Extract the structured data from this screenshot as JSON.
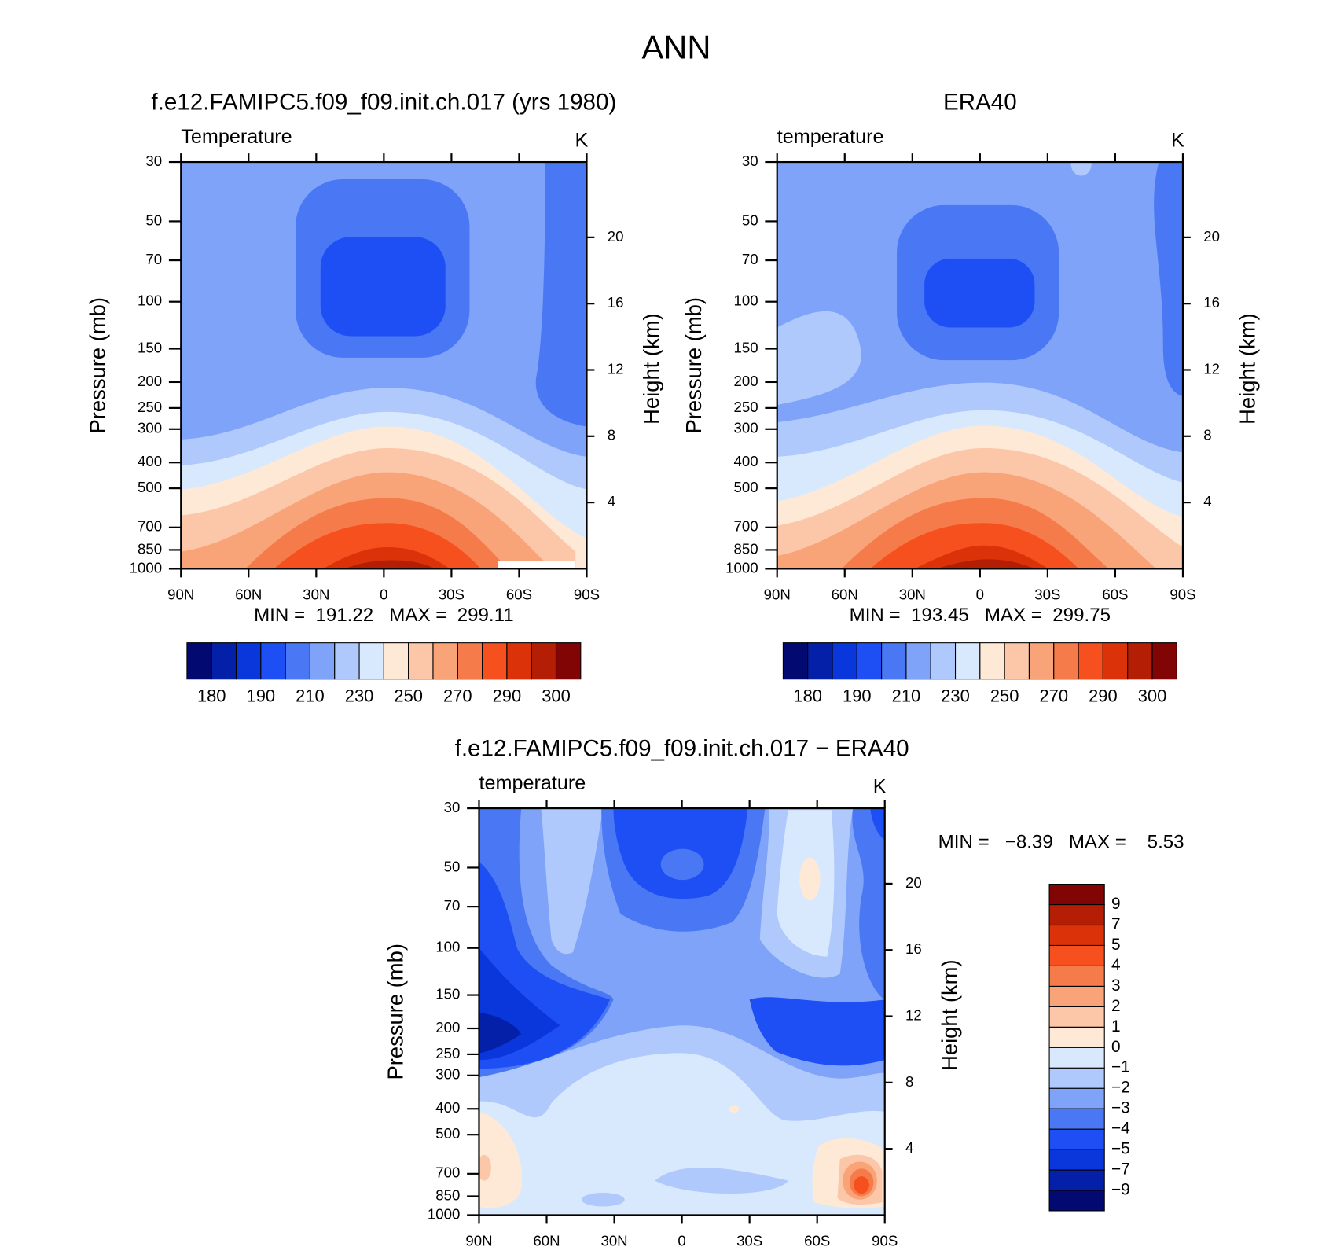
{
  "title": "ANN",
  "chart_data": [
    {
      "type": "contour",
      "title": "f.e12.FAMIPC5.f09_f09.init.ch.017 (yrs 1980)",
      "variable": "Temperature",
      "units": "K",
      "ylabel": "Pressure (mb)",
      "y2label": "Height (km)",
      "stats": "MIN =  191.22   MAX =  299.11",
      "xlim": [
        90,
        -90
      ],
      "xticks": [
        {
          "value": 90,
          "label": "90N"
        },
        {
          "value": 60,
          "label": "60N"
        },
        {
          "value": 30,
          "label": "30N"
        },
        0,
        {
          "value": -30,
          "label": "30S"
        },
        {
          "value": -60,
          "label": "60S"
        },
        {
          "value": -90,
          "label": "90S"
        }
      ],
      "ylim": [
        30,
        1000
      ],
      "log_y": true,
      "y_inverted": true,
      "yticks": [
        30,
        50,
        70,
        100,
        150,
        200,
        250,
        300,
        400,
        500,
        700,
        850,
        1000
      ],
      "y2ticks": [
        20,
        16,
        12,
        8,
        4
      ],
      "colorbar": {
        "orientation": "horizontal",
        "colors": [
          "#020a72",
          "#0520a8",
          "#0a37dc",
          "#1e4ff5",
          "#4a78f5",
          "#7ea3f8",
          "#b0c9fc",
          "#d9e9fd",
          "#fde9d6",
          "#fcc6a8",
          "#f8a478",
          "#f57c4a",
          "#f5501e",
          "#dc320a",
          "#b41e05",
          "#820505"
        ],
        "labels": [
          180,
          190,
          210,
          230,
          250,
          270,
          290,
          300
        ]
      }
    },
    {
      "type": "contour",
      "title": "ERA40",
      "variable": "temperature",
      "units": "K",
      "ylabel": "Pressure (mb)",
      "y2label": "Height (km)",
      "stats": "MIN =  193.45   MAX =  299.75",
      "xlim": [
        90,
        -90
      ],
      "xticks": [
        {
          "value": 90,
          "label": "90N"
        },
        {
          "value": 60,
          "label": "60N"
        },
        {
          "value": 30,
          "label": "30N"
        },
        0,
        {
          "value": -30,
          "label": "30S"
        },
        {
          "value": -60,
          "label": "60S"
        },
        {
          "value": -90,
          "label": "90S"
        }
      ],
      "ylim": [
        30,
        1000
      ],
      "log_y": true,
      "y_inverted": true,
      "yticks": [
        30,
        50,
        70,
        100,
        150,
        200,
        250,
        300,
        400,
        500,
        700,
        850,
        1000
      ],
      "y2ticks": [
        20,
        16,
        12,
        8,
        4
      ],
      "colorbar": {
        "orientation": "horizontal",
        "colors": [
          "#020a72",
          "#0520a8",
          "#0a37dc",
          "#1e4ff5",
          "#4a78f5",
          "#7ea3f8",
          "#b0c9fc",
          "#d9e9fd",
          "#fde9d6",
          "#fcc6a8",
          "#f8a478",
          "#f57c4a",
          "#f5501e",
          "#dc320a",
          "#b41e05",
          "#820505"
        ],
        "labels": [
          180,
          190,
          210,
          230,
          250,
          270,
          290,
          300
        ]
      }
    },
    {
      "type": "contour",
      "title": "f.e12.FAMIPC5.f09_f09.init.ch.017 − ERA40",
      "variable": "temperature",
      "units": "K",
      "ylabel": "Pressure (mb)",
      "y2label": "Height (km)",
      "stats": "MIN =   −8.39   MAX =    5.53",
      "xlim": [
        90,
        -90
      ],
      "xticks": [
        {
          "value": 90,
          "label": "90N"
        },
        {
          "value": 60,
          "label": "60N"
        },
        {
          "value": 30,
          "label": "30N"
        },
        0,
        {
          "value": -30,
          "label": "30S"
        },
        {
          "value": -60,
          "label": "60S"
        },
        {
          "value": -90,
          "label": "90S"
        }
      ],
      "ylim": [
        30,
        1000
      ],
      "log_y": true,
      "y_inverted": true,
      "yticks": [
        30,
        50,
        70,
        100,
        150,
        200,
        250,
        300,
        400,
        500,
        700,
        850,
        1000
      ],
      "y2ticks": [
        20,
        16,
        12,
        8,
        4
      ],
      "colorbar": {
        "orientation": "vertical",
        "colors": [
          "#020a72",
          "#0520a8",
          "#0a37dc",
          "#1e4ff5",
          "#4a78f5",
          "#7ea3f8",
          "#b0c9fc",
          "#d9e9fd",
          "#fde9d6",
          "#fcc6a8",
          "#f8a478",
          "#f57c4a",
          "#f5501e",
          "#dc320a",
          "#b41e05",
          "#820505"
        ],
        "labels": [
          9,
          7,
          5,
          4,
          3,
          2,
          1,
          0,
          {
            "value": -1,
            "label": "−1"
          },
          {
            "value": -2,
            "label": "−2"
          },
          {
            "value": -3,
            "label": "−3"
          },
          {
            "value": -4,
            "label": "−4"
          },
          {
            "value": -5,
            "label": "−5"
          },
          {
            "value": -7,
            "label": "−7"
          },
          {
            "value": -9,
            "label": "−9"
          }
        ]
      }
    }
  ]
}
